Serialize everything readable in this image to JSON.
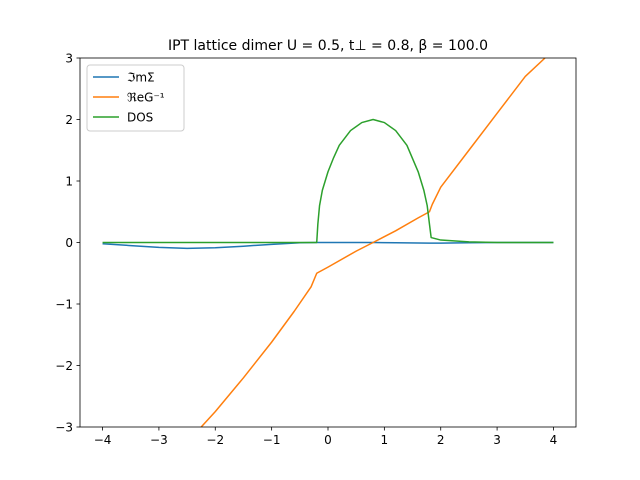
{
  "chart_data": {
    "type": "line",
    "title": "IPT lattice dimer U = 0.5, t⊥ = 0.8, β = 100.0",
    "xlim": [
      -4.4,
      4.4
    ],
    "ylim": [
      -3,
      3
    ],
    "xticks": [
      -4,
      -3,
      -2,
      -1,
      0,
      1,
      2,
      3,
      4
    ],
    "xtick_labels": [
      "−4",
      "−3",
      "−2",
      "−1",
      "0",
      "1",
      "2",
      "3",
      "4"
    ],
    "yticks": [
      -3,
      -2,
      -1,
      0,
      1,
      2,
      3
    ],
    "ytick_labels": [
      "−3",
      "−2",
      "−1",
      "0",
      "1",
      "2",
      "3"
    ],
    "grid": false,
    "legend_position": "upper-left",
    "series": [
      {
        "name": "ℑmΣ",
        "color": "#1f77b4",
        "x": [
          -4.0,
          -3.5,
          -3.0,
          -2.5,
          -2.2,
          -2.0,
          -1.5,
          -1.0,
          -0.5,
          -0.2,
          0.0,
          0.5,
          0.8,
          1.2,
          1.8,
          2.0,
          2.5,
          3.0,
          3.5,
          4.0
        ],
        "y": [
          -0.02,
          -0.05,
          -0.08,
          -0.095,
          -0.09,
          -0.085,
          -0.06,
          -0.03,
          -0.005,
          0.0,
          0.0,
          0.0,
          0.0,
          -0.005,
          -0.01,
          -0.01,
          -0.005,
          0.0,
          0.0,
          0.0
        ]
      },
      {
        "name": "ℜeG⁻¹",
        "color": "#ff7f0e",
        "x": [
          -2.25,
          -2.0,
          -1.5,
          -1.0,
          -0.6,
          -0.3,
          -0.2,
          -0.18,
          0.0,
          0.5,
          0.8,
          1.2,
          1.6,
          1.8,
          1.85,
          2.0,
          2.5,
          3.0,
          3.5,
          3.85
        ],
        "y": [
          -3.0,
          -2.75,
          -2.2,
          -1.62,
          -1.12,
          -0.72,
          -0.5,
          -0.49,
          -0.4,
          -0.14,
          0.0,
          0.19,
          0.4,
          0.5,
          0.62,
          0.9,
          1.5,
          2.1,
          2.7,
          3.0
        ]
      },
      {
        "name": "DOS",
        "color": "#2ca02c",
        "x": [
          -4.0,
          -2.0,
          -0.2,
          -0.18,
          -0.15,
          -0.1,
          0.0,
          0.1,
          0.2,
          0.4,
          0.6,
          0.8,
          1.0,
          1.2,
          1.4,
          1.6,
          1.7,
          1.76,
          1.8,
          1.83,
          2.0,
          2.5,
          3.0,
          4.0
        ],
        "y": [
          0.0,
          0.0,
          0.0,
          0.3,
          0.6,
          0.85,
          1.15,
          1.38,
          1.58,
          1.82,
          1.95,
          2.0,
          1.95,
          1.82,
          1.58,
          1.15,
          0.85,
          0.6,
          0.3,
          0.08,
          0.04,
          0.01,
          0.0,
          0.0
        ]
      }
    ]
  }
}
